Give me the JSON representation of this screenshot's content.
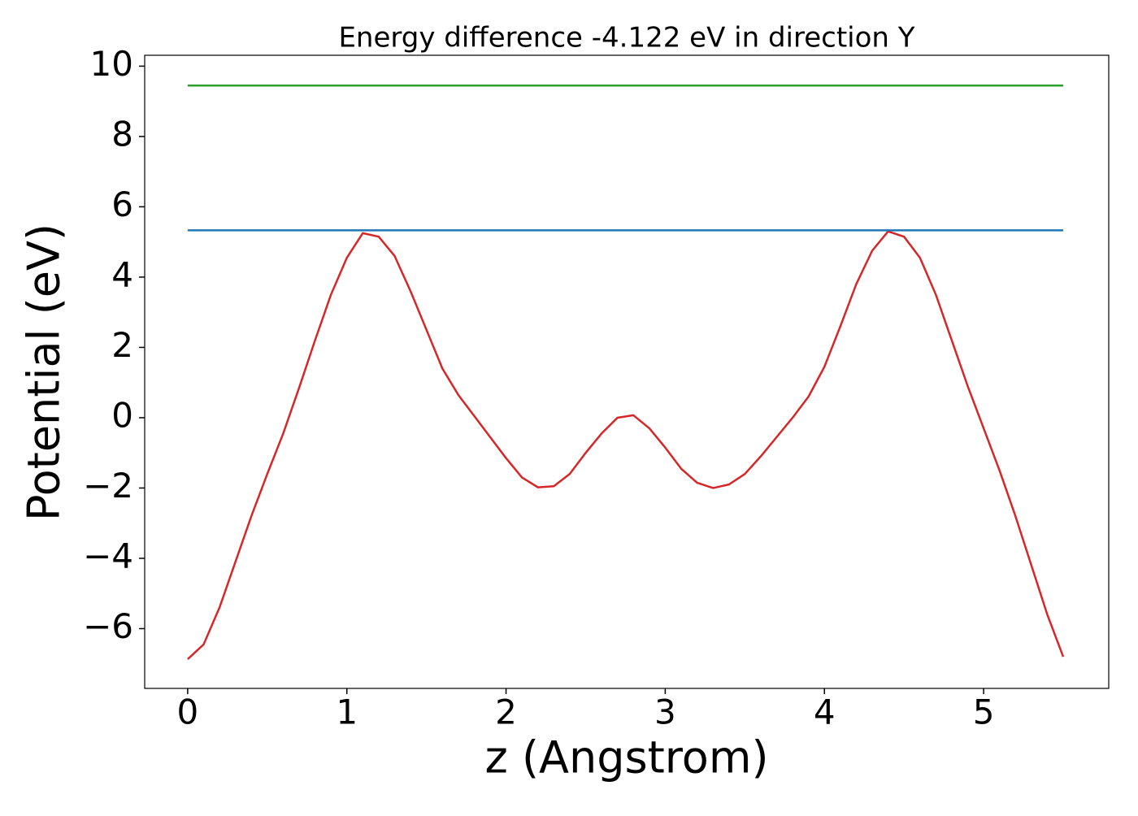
{
  "chart_data": {
    "type": "line",
    "title": "Energy difference -4.122 eV in direction Y",
    "xlabel": "z (Angstrom)",
    "ylabel": "Potential (eV)",
    "xlim": [
      -0.27,
      5.786
    ],
    "ylim": [
      -7.7,
      10.31
    ],
    "xticks": [
      0,
      1,
      2,
      3,
      4,
      5
    ],
    "yticks": [
      {
        "value": -6,
        "label": "−6"
      },
      {
        "value": -4,
        "label": "−4"
      },
      {
        "value": -2,
        "label": "−2"
      },
      0,
      2,
      4,
      6,
      8,
      10
    ],
    "grid": false,
    "series": [
      {
        "color": "#d62728",
        "x": [
          0.0,
          0.1,
          0.2,
          0.3,
          0.4,
          0.5,
          0.6,
          0.7,
          0.8,
          0.9,
          1.0,
          1.1,
          1.2,
          1.3,
          1.4,
          1.5,
          1.6,
          1.7,
          1.8,
          1.9,
          2.0,
          2.1,
          2.2,
          2.3,
          2.4,
          2.5,
          2.6,
          2.7,
          2.8,
          2.9,
          3.0,
          3.1,
          3.2,
          3.3,
          3.4,
          3.5,
          3.6,
          3.7,
          3.8,
          3.9,
          4.0,
          4.1,
          4.2,
          4.3,
          4.4,
          4.5,
          4.6,
          4.7,
          4.8,
          4.9,
          5.0,
          5.1,
          5.2,
          5.3,
          5.4,
          5.5
        ],
        "values": [
          -6.87,
          -6.45,
          -5.4,
          -4.1,
          -2.8,
          -1.6,
          -0.45,
          0.85,
          2.2,
          3.5,
          4.55,
          5.25,
          5.15,
          4.6,
          3.6,
          2.5,
          1.4,
          0.65,
          0.05,
          -0.55,
          -1.15,
          -1.7,
          -1.98,
          -1.95,
          -1.6,
          -1.0,
          -0.45,
          0.0,
          0.07,
          -0.3,
          -0.85,
          -1.45,
          -1.85,
          -2.0,
          -1.9,
          -1.6,
          -1.1,
          -0.55,
          0.0,
          0.6,
          1.45,
          2.6,
          3.8,
          4.75,
          5.3,
          5.15,
          4.55,
          3.5,
          2.2,
          0.9,
          -0.3,
          -1.5,
          -2.8,
          -4.2,
          -5.6,
          -6.8
        ]
      },
      {
        "color": "#1f77b4",
        "x": [
          0,
          5.5
        ],
        "values": [
          5.33,
          5.33
        ]
      },
      {
        "color": "#2ca02c",
        "x": [
          0,
          5.5
        ],
        "values": [
          9.45,
          9.45
        ]
      }
    ]
  }
}
